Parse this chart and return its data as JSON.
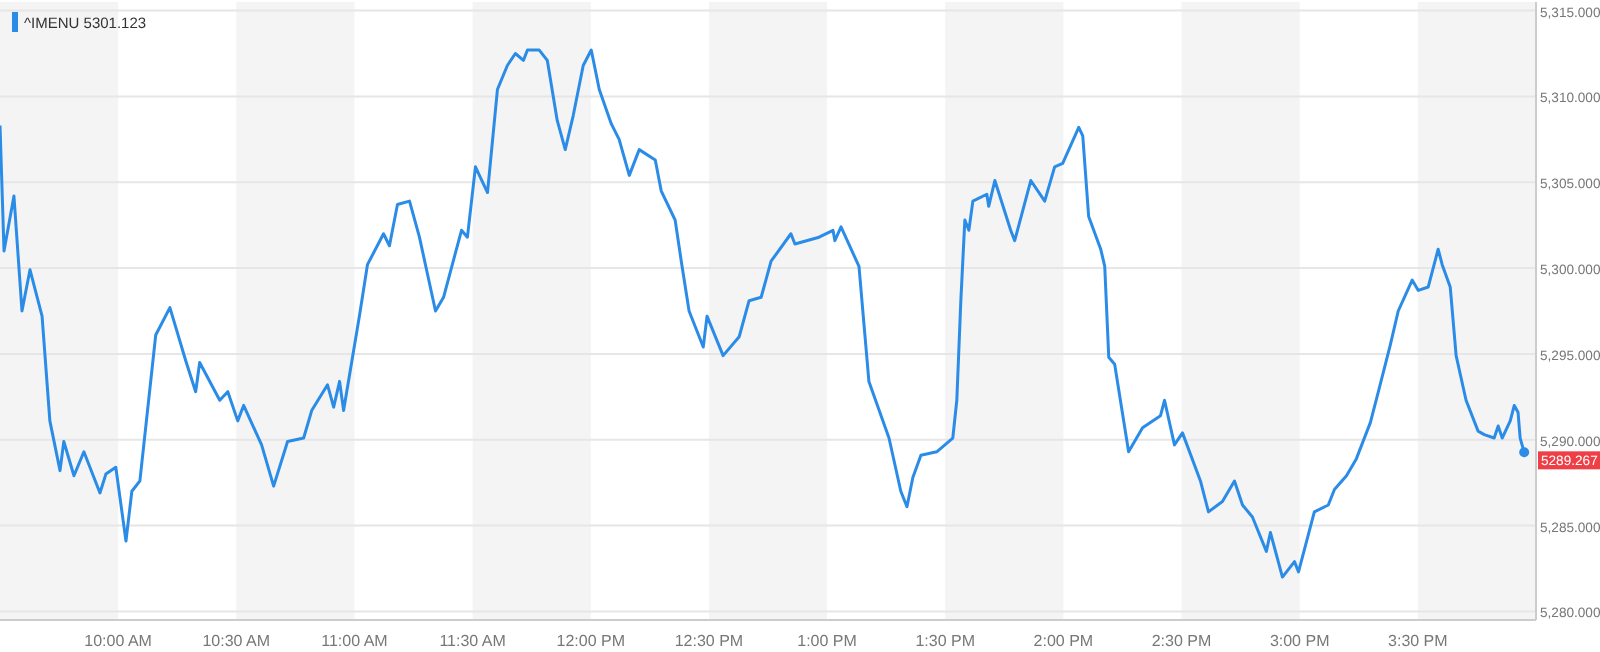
{
  "chart_data": {
    "type": "line",
    "x": [
      9.5,
      9.517,
      9.559,
      9.593,
      9.627,
      9.678,
      9.711,
      9.754,
      9.77,
      9.813,
      9.855,
      9.923,
      9.948,
      9.99,
      10.033,
      10.058,
      10.092,
      10.159,
      10.219,
      10.286,
      10.328,
      10.345,
      10.43,
      10.464,
      10.506,
      10.531,
      10.607,
      10.658,
      10.717,
      10.785,
      10.819,
      10.886,
      10.912,
      10.937,
      10.954,
      11.022,
      11.055,
      11.123,
      11.148,
      11.182,
      11.233,
      11.275,
      11.343,
      11.377,
      11.453,
      11.478,
      11.512,
      11.563,
      11.605,
      11.647,
      11.681,
      11.715,
      11.732,
      11.782,
      11.816,
      11.858,
      11.892,
      11.926,
      11.968,
      12.002,
      12.036,
      12.087,
      12.12,
      12.163,
      12.205,
      12.273,
      12.298,
      12.357,
      12.383,
      12.416,
      12.476,
      12.492,
      12.56,
      12.628,
      12.67,
      12.721,
      12.763,
      12.847,
      12.864,
      12.966,
      13.025,
      13.033,
      13.059,
      13.135,
      13.177,
      13.262,
      13.312,
      13.338,
      13.363,
      13.397,
      13.464,
      13.532,
      13.549,
      13.566,
      13.583,
      13.6,
      13.617,
      13.676,
      13.684,
      13.71,
      13.777,
      13.794,
      13.862,
      13.921,
      13.963,
      13.997,
      14.065,
      14.082,
      14.107,
      14.158,
      14.175,
      14.192,
      14.217,
      14.276,
      14.335,
      14.411,
      14.428,
      14.47,
      14.504,
      14.58,
      14.614,
      14.673,
      14.724,
      14.758,
      14.8,
      14.859,
      14.876,
      14.927,
      14.978,
      14.995,
      15.062,
      15.121,
      15.147,
      15.198,
      15.24,
      15.299,
      15.333,
      15.383,
      15.417,
      15.476,
      15.502,
      15.544,
      15.586,
      15.603,
      15.637,
      15.662,
      15.704,
      15.755,
      15.781,
      15.823,
      15.84,
      15.857,
      15.891,
      15.908,
      15.924,
      15.933,
      15.95
    ],
    "series": [
      {
        "name": "^IMENU 5301.123",
        "color": "#2b8ce8",
        "values": [
          5308.3,
          5301.0,
          5304.2,
          5297.5,
          5299.9,
          5297.2,
          5291.1,
          5288.2,
          5289.9,
          5287.9,
          5289.3,
          5286.9,
          5288.0,
          5288.4,
          5284.1,
          5287.0,
          5287.6,
          5296.1,
          5297.7,
          5294.6,
          5292.8,
          5294.5,
          5292.3,
          5292.8,
          5291.1,
          5292.0,
          5289.7,
          5287.3,
          5289.9,
          5290.1,
          5291.7,
          5293.2,
          5291.9,
          5293.4,
          5291.7,
          5297.3,
          5300.2,
          5302.0,
          5301.3,
          5303.7,
          5303.9,
          5301.8,
          5297.5,
          5298.3,
          5302.2,
          5301.8,
          5305.9,
          5304.4,
          5310.4,
          5311.8,
          5312.5,
          5312.1,
          5312.7,
          5312.7,
          5312.1,
          5308.6,
          5306.9,
          5308.9,
          5311.8,
          5312.7,
          5310.4,
          5308.4,
          5307.5,
          5305.4,
          5306.9,
          5306.3,
          5304.5,
          5302.8,
          5300.4,
          5297.5,
          5295.4,
          5297.2,
          5294.9,
          5296.0,
          5298.1,
          5298.3,
          5300.4,
          5302.0,
          5301.4,
          5301.8,
          5302.2,
          5301.6,
          5302.4,
          5300.1,
          5293.4,
          5290.1,
          5287.0,
          5286.1,
          5287.8,
          5289.1,
          5289.3,
          5290.1,
          5292.3,
          5298.1,
          5302.8,
          5302.2,
          5303.9,
          5304.3,
          5303.6,
          5305.1,
          5302.2,
          5301.6,
          5305.1,
          5303.9,
          5305.9,
          5306.1,
          5308.2,
          5307.7,
          5303.0,
          5301.1,
          5300.1,
          5294.8,
          5294.4,
          5289.3,
          5290.7,
          5291.4,
          5292.3,
          5289.7,
          5290.4,
          5287.6,
          5285.8,
          5286.4,
          5287.6,
          5286.2,
          5285.5,
          5283.5,
          5284.6,
          5282.0,
          5282.9,
          5282.3,
          5285.8,
          5286.2,
          5287.1,
          5287.9,
          5288.9,
          5291.0,
          5292.8,
          5295.5,
          5297.5,
          5299.3,
          5298.7,
          5298.9,
          5301.1,
          5300.2,
          5298.9,
          5294.9,
          5292.3,
          5290.5,
          5290.3,
          5290.1,
          5290.8,
          5290.1,
          5291.1,
          5292.0,
          5291.6,
          5290.1,
          5289.267
        ]
      }
    ],
    "xlim": [
      9.5,
      16
    ],
    "xticks": [
      {
        "value": 10,
        "label": "10:00 AM"
      },
      {
        "value": 10.5,
        "label": "10:30 AM"
      },
      {
        "value": 11,
        "label": "11:00 AM"
      },
      {
        "value": 11.5,
        "label": "11:30 AM"
      },
      {
        "value": 12,
        "label": "12:00 PM"
      },
      {
        "value": 12.5,
        "label": "12:30 PM"
      },
      {
        "value": 13,
        "label": "1:00 PM"
      },
      {
        "value": 13.5,
        "label": "1:30 PM"
      },
      {
        "value": 14,
        "label": "2:00 PM"
      },
      {
        "value": 14.5,
        "label": "2:30 PM"
      },
      {
        "value": 15,
        "label": "3:00 PM"
      },
      {
        "value": 15.5,
        "label": "3:30 PM"
      }
    ],
    "ylim": [
      5279.5,
      5315.5
    ],
    "yticks": [
      {
        "value": 5280,
        "label": "5,280.000"
      },
      {
        "value": 5285,
        "label": "5,285.000"
      },
      {
        "value": 5290,
        "label": "5,290.000"
      },
      {
        "value": 5295,
        "label": "5,295.000"
      },
      {
        "value": 5300,
        "label": "5,300.000"
      },
      {
        "value": 5305,
        "label": "5,305.000"
      },
      {
        "value": 5310,
        "label": "5,310.000"
      },
      {
        "value": 5315,
        "label": "5,315.000"
      }
    ],
    "grid": "y",
    "legend": "top left",
    "marker": "none",
    "line_style": "solid",
    "bands": [
      {
        "axis": "x",
        "from": 9.5,
        "to": 10,
        "color": "#f4f4f4"
      },
      {
        "axis": "x",
        "from": 10.5,
        "to": 11,
        "color": "#f4f4f4"
      },
      {
        "axis": "x",
        "from": 11.5,
        "to": 12,
        "color": "#f4f4f4"
      },
      {
        "axis": "x",
        "from": 12.5,
        "to": 13,
        "color": "#f4f4f4"
      },
      {
        "axis": "x",
        "from": 13.5,
        "to": 14,
        "color": "#f4f4f4"
      },
      {
        "axis": "x",
        "from": 14.5,
        "to": 15,
        "color": "#f4f4f4"
      },
      {
        "axis": "x",
        "from": 15.5,
        "to": 16,
        "color": "#f4f4f4"
      }
    ],
    "annotations": [
      {
        "text": "5289.267",
        "x": 15.95,
        "y": 5289.267
      }
    ]
  }
}
